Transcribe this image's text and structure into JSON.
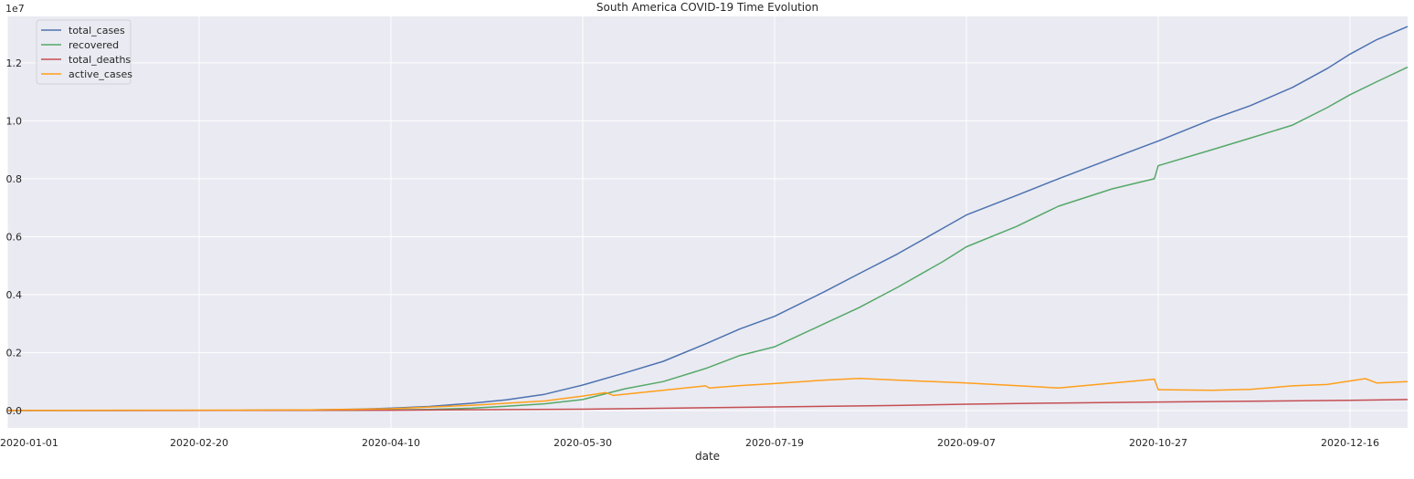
{
  "chart_data": {
    "type": "line",
    "title": "South America COVID-19 Time Evolution",
    "xlabel": "date",
    "ylabel": "",
    "y_offset_label": "1e7",
    "x_ticks": [
      "2020-01-01",
      "2020-02-20",
      "2020-04-10",
      "2020-05-30",
      "2020-07-19",
      "2020-09-07",
      "2020-10-27",
      "2020-12-16"
    ],
    "y_ticks": [
      "0.0",
      "0.2",
      "0.4",
      "0.6",
      "0.8",
      "1.0",
      "1.2"
    ],
    "xlim": [
      "2020-01-01",
      "2020-12-31"
    ],
    "ylim": [
      -600000,
      13600000
    ],
    "grid": true,
    "legend_position": "top-left",
    "background_color": "#eaeaf2",
    "series": [
      {
        "name": "total_cases",
        "color": "#4c72b0",
        "x": [
          "2020-01-01",
          "2020-03-01",
          "2020-03-20",
          "2020-04-01",
          "2020-04-10",
          "2020-04-20",
          "2020-05-01",
          "2020-05-10",
          "2020-05-20",
          "2020-05-30",
          "2020-06-10",
          "2020-06-20",
          "2020-07-01",
          "2020-07-10",
          "2020-07-19",
          "2020-08-01",
          "2020-08-10",
          "2020-08-20",
          "2020-09-01",
          "2020-09-07",
          "2020-09-20",
          "2020-10-01",
          "2020-10-15",
          "2020-10-27",
          "2020-11-10",
          "2020-11-20",
          "2020-12-01",
          "2020-12-10",
          "2020-12-16",
          "2020-12-23",
          "2020-12-31"
        ],
        "values": [
          0,
          5000,
          20000,
          45000,
          80000,
          140000,
          250000,
          370000,
          560000,
          880000,
          1300000,
          1700000,
          2300000,
          2820000,
          3250000,
          4100000,
          4720000,
          5400000,
          6300000,
          6750000,
          7420000,
          8000000,
          8700000,
          9300000,
          10050000,
          10520000,
          11150000,
          11800000,
          12300000,
          12800000,
          13250000
        ]
      },
      {
        "name": "recovered",
        "color": "#55a868",
        "x": [
          "2020-01-01",
          "2020-04-01",
          "2020-04-20",
          "2020-05-01",
          "2020-05-10",
          "2020-05-20",
          "2020-05-30",
          "2020-06-10",
          "2020-06-20",
          "2020-07-01",
          "2020-07-10",
          "2020-07-19",
          "2020-08-01",
          "2020-08-10",
          "2020-08-20",
          "2020-09-01",
          "2020-09-07",
          "2020-09-20",
          "2020-10-01",
          "2020-10-15",
          "2020-10-26",
          "2020-10-27",
          "2020-11-10",
          "2020-11-20",
          "2020-12-01",
          "2020-12-10",
          "2020-12-16",
          "2020-12-23",
          "2020-12-31"
        ],
        "values": [
          0,
          10000,
          40000,
          80000,
          150000,
          230000,
          380000,
          750000,
          1000000,
          1450000,
          1900000,
          2200000,
          3000000,
          3550000,
          4250000,
          5150000,
          5650000,
          6350000,
          7050000,
          7650000,
          8000000,
          8450000,
          9000000,
          9400000,
          9850000,
          10450000,
          10900000,
          11350000,
          11850000
        ]
      },
      {
        "name": "total_deaths",
        "color": "#c44e52",
        "x": [
          "2020-01-01",
          "2020-04-10",
          "2020-05-01",
          "2020-05-30",
          "2020-07-01",
          "2020-07-19",
          "2020-08-20",
          "2020-09-07",
          "2020-10-01",
          "2020-10-27",
          "2020-11-20",
          "2020-12-16",
          "2020-12-31"
        ],
        "values": [
          0,
          10000,
          25000,
          45000,
          95000,
          125000,
          175000,
          220000,
          260000,
          295000,
          320000,
          355000,
          380000
        ]
      },
      {
        "name": "active_cases",
        "color": "#ff9f1a",
        "x": [
          "2020-01-01",
          "2020-03-20",
          "2020-04-10",
          "2020-05-01",
          "2020-05-20",
          "2020-05-30",
          "2020-06-05",
          "2020-06-07",
          "2020-06-20",
          "2020-07-01",
          "2020-07-02",
          "2020-07-10",
          "2020-07-19",
          "2020-08-01",
          "2020-08-10",
          "2020-08-20",
          "2020-09-07",
          "2020-10-01",
          "2020-10-26",
          "2020-10-27",
          "2020-11-10",
          "2020-11-20",
          "2020-12-01",
          "2020-12-10",
          "2020-12-20",
          "2020-12-23",
          "2020-12-31"
        ],
        "values": [
          0,
          20000,
          60000,
          180000,
          330000,
          500000,
          620000,
          520000,
          700000,
          850000,
          780000,
          860000,
          930000,
          1050000,
          1110000,
          1050000,
          950000,
          780000,
          1080000,
          720000,
          700000,
          730000,
          850000,
          900000,
          1100000,
          950000,
          1000000
        ]
      }
    ]
  }
}
